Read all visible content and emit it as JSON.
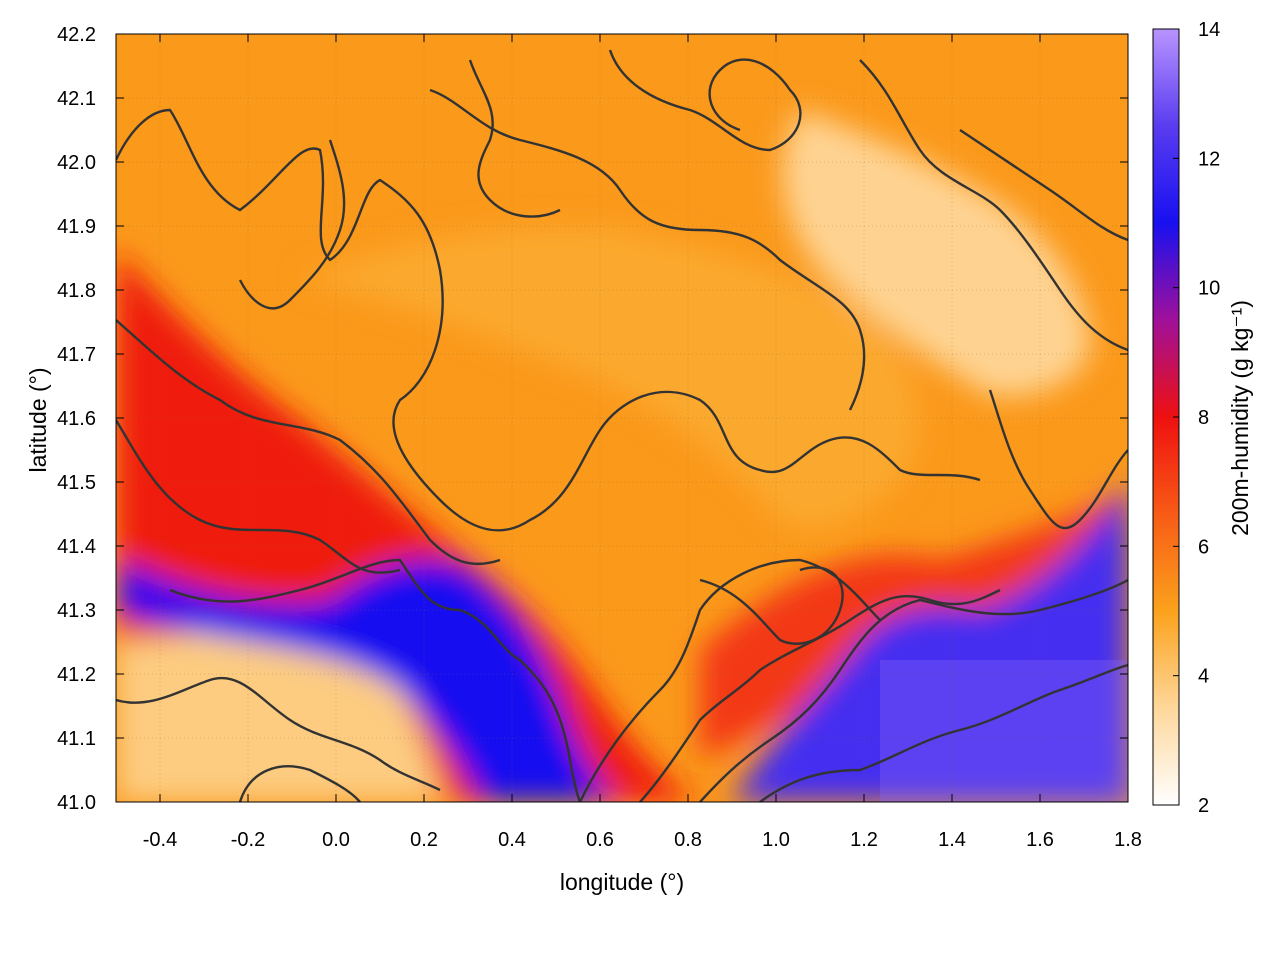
{
  "x_axis": {
    "label": "longitude (°)",
    "range": [
      -0.5,
      1.8
    ],
    "ticks": [
      {
        "value": -0.4,
        "label": "-0.4"
      },
      {
        "value": -0.2,
        "label": "-0.2"
      },
      {
        "value": 0.0,
        "label": "0.0"
      },
      {
        "value": 0.2,
        "label": "0.2"
      },
      {
        "value": 0.4,
        "label": "0.4"
      },
      {
        "value": 0.6,
        "label": "0.6"
      },
      {
        "value": 0.8,
        "label": "0.8"
      },
      {
        "value": 1.0,
        "label": "1.0"
      },
      {
        "value": 1.2,
        "label": "1.2"
      },
      {
        "value": 1.4,
        "label": "1.4"
      },
      {
        "value": 1.6,
        "label": "1.6"
      },
      {
        "value": 1.8,
        "label": "1.8"
      }
    ]
  },
  "y_axis": {
    "label": "latitude (°)",
    "range": [
      41.0,
      42.2
    ],
    "ticks": [
      {
        "value": 41.0,
        "label": "41.0"
      },
      {
        "value": 41.1,
        "label": "41.1"
      },
      {
        "value": 41.2,
        "label": "41.2"
      },
      {
        "value": 41.3,
        "label": "41.3"
      },
      {
        "value": 41.4,
        "label": "41.4"
      },
      {
        "value": 41.5,
        "label": "41.5"
      },
      {
        "value": 41.6,
        "label": "41.6"
      },
      {
        "value": 41.7,
        "label": "41.7"
      },
      {
        "value": 41.8,
        "label": "41.8"
      },
      {
        "value": 41.9,
        "label": "41.9"
      },
      {
        "value": 42.0,
        "label": "42.0"
      },
      {
        "value": 42.1,
        "label": "42.1"
      },
      {
        "value": 42.2,
        "label": "42.2"
      }
    ]
  },
  "colorbar": {
    "label": "200m-humidity (g kg⁻¹)",
    "range": [
      2,
      14
    ],
    "ticks": [
      {
        "value": 2,
        "label": "2"
      },
      {
        "value": 4,
        "label": "4"
      },
      {
        "value": 6,
        "label": "6"
      },
      {
        "value": 8,
        "label": "8"
      },
      {
        "value": 10,
        "label": "10"
      },
      {
        "value": 12,
        "label": "12"
      },
      {
        "value": 14,
        "label": "14"
      }
    ],
    "stops": [
      {
        "value": 2,
        "color": "#ffffff"
      },
      {
        "value": 3.5,
        "color": "#fed79a"
      },
      {
        "value": 5,
        "color": "#fba21c"
      },
      {
        "value": 6.5,
        "color": "#f85b16"
      },
      {
        "value": 8,
        "color": "#ee1010"
      },
      {
        "value": 9.5,
        "color": "#a0109a"
      },
      {
        "value": 11,
        "color": "#1810f0"
      },
      {
        "value": 12.5,
        "color": "#5a3cf0"
      },
      {
        "value": 14,
        "color": "#b894ff"
      }
    ]
  },
  "map": {
    "grid": true,
    "contour_color": "#333333",
    "regions": [
      {
        "name": "north-interior",
        "level": 4.8
      },
      {
        "name": "northeast-dry-patch",
        "level": 3.6
      },
      {
        "name": "west-moist-band",
        "level": 7.8
      },
      {
        "name": "southwest-dry-area",
        "level": 3.8
      },
      {
        "name": "ebro-valley-moist-core",
        "level": 11.0
      },
      {
        "name": "mediterranean-sea",
        "level": 12.0
      },
      {
        "name": "coastal-transition",
        "level": 7.2
      }
    ]
  }
}
